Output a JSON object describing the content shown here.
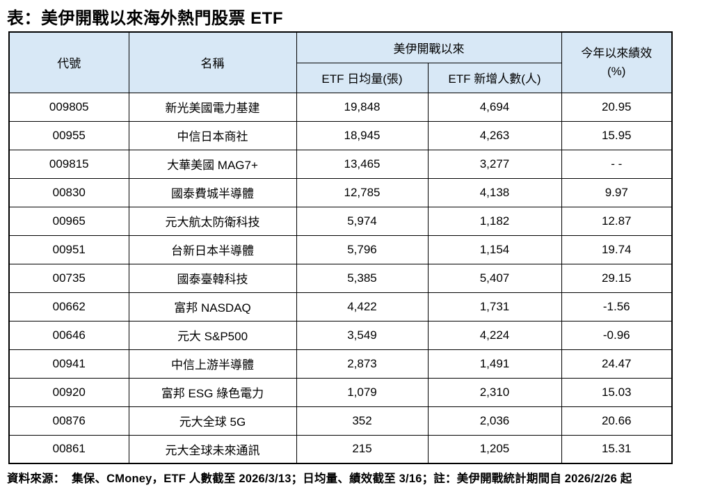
{
  "title": "表：美伊開戰以來海外熱門股票 ETF",
  "colors": {
    "header_bg": "#D8E8F6",
    "border": "#000000",
    "text": "#000000",
    "background": "#FFFFFF"
  },
  "table": {
    "header": {
      "code": "代號",
      "name": "名稱",
      "war_group": "美伊開戰以來",
      "avg_volume": "ETF 日均量(張)",
      "new_investors": "ETF 新增人數(人)",
      "ytd_line1": "今年以來績效",
      "ytd_line2": "(%)"
    },
    "rows": [
      {
        "code": "009805",
        "name": "新光美國電力基建",
        "avg_volume": "19,848",
        "new_investors": "4,694",
        "ytd": "20.95"
      },
      {
        "code": "00955",
        "name": "中信日本商社",
        "avg_volume": "18,945",
        "new_investors": "4,263",
        "ytd": "15.95"
      },
      {
        "code": "009815",
        "name": "大華美國 MAG7+",
        "avg_volume": "13,465",
        "new_investors": "3,277",
        "ytd": "- -"
      },
      {
        "code": "00830",
        "name": "國泰費城半導體",
        "avg_volume": "12,785",
        "new_investors": "4,138",
        "ytd": "9.97"
      },
      {
        "code": "00965",
        "name": "元大航太防衛科技",
        "avg_volume": "5,974",
        "new_investors": "1,182",
        "ytd": "12.87"
      },
      {
        "code": "00951",
        "name": "台新日本半導體",
        "avg_volume": "5,796",
        "new_investors": "1,154",
        "ytd": "19.74"
      },
      {
        "code": "00735",
        "name": "國泰臺韓科技",
        "avg_volume": "5,385",
        "new_investors": "5,407",
        "ytd": "29.15"
      },
      {
        "code": "00662",
        "name": "富邦 NASDAQ",
        "avg_volume": "4,422",
        "new_investors": "1,731",
        "ytd": "-1.56"
      },
      {
        "code": "00646",
        "name": "元大 S&P500",
        "avg_volume": "3,549",
        "new_investors": "4,224",
        "ytd": "-0.96"
      },
      {
        "code": "00941",
        "name": "中信上游半導體",
        "avg_volume": "2,873",
        "new_investors": "1,491",
        "ytd": "24.47"
      },
      {
        "code": "00920",
        "name": "富邦 ESG 綠色電力",
        "avg_volume": "1,079",
        "new_investors": "2,310",
        "ytd": "15.03"
      },
      {
        "code": "00876",
        "name": "元大全球 5G",
        "avg_volume": "352",
        "new_investors": "2,036",
        "ytd": "20.66"
      },
      {
        "code": "00861",
        "name": "元大全球未來通訊",
        "avg_volume": "215",
        "new_investors": "1,205",
        "ytd": "15.31"
      }
    ]
  },
  "footer": "資料來源：  集保、CMoney，ETF 人數截至 2026/3/13；日均量、績效截至 3/16；註：美伊開戰統計期間自 2026/2/26 起"
}
